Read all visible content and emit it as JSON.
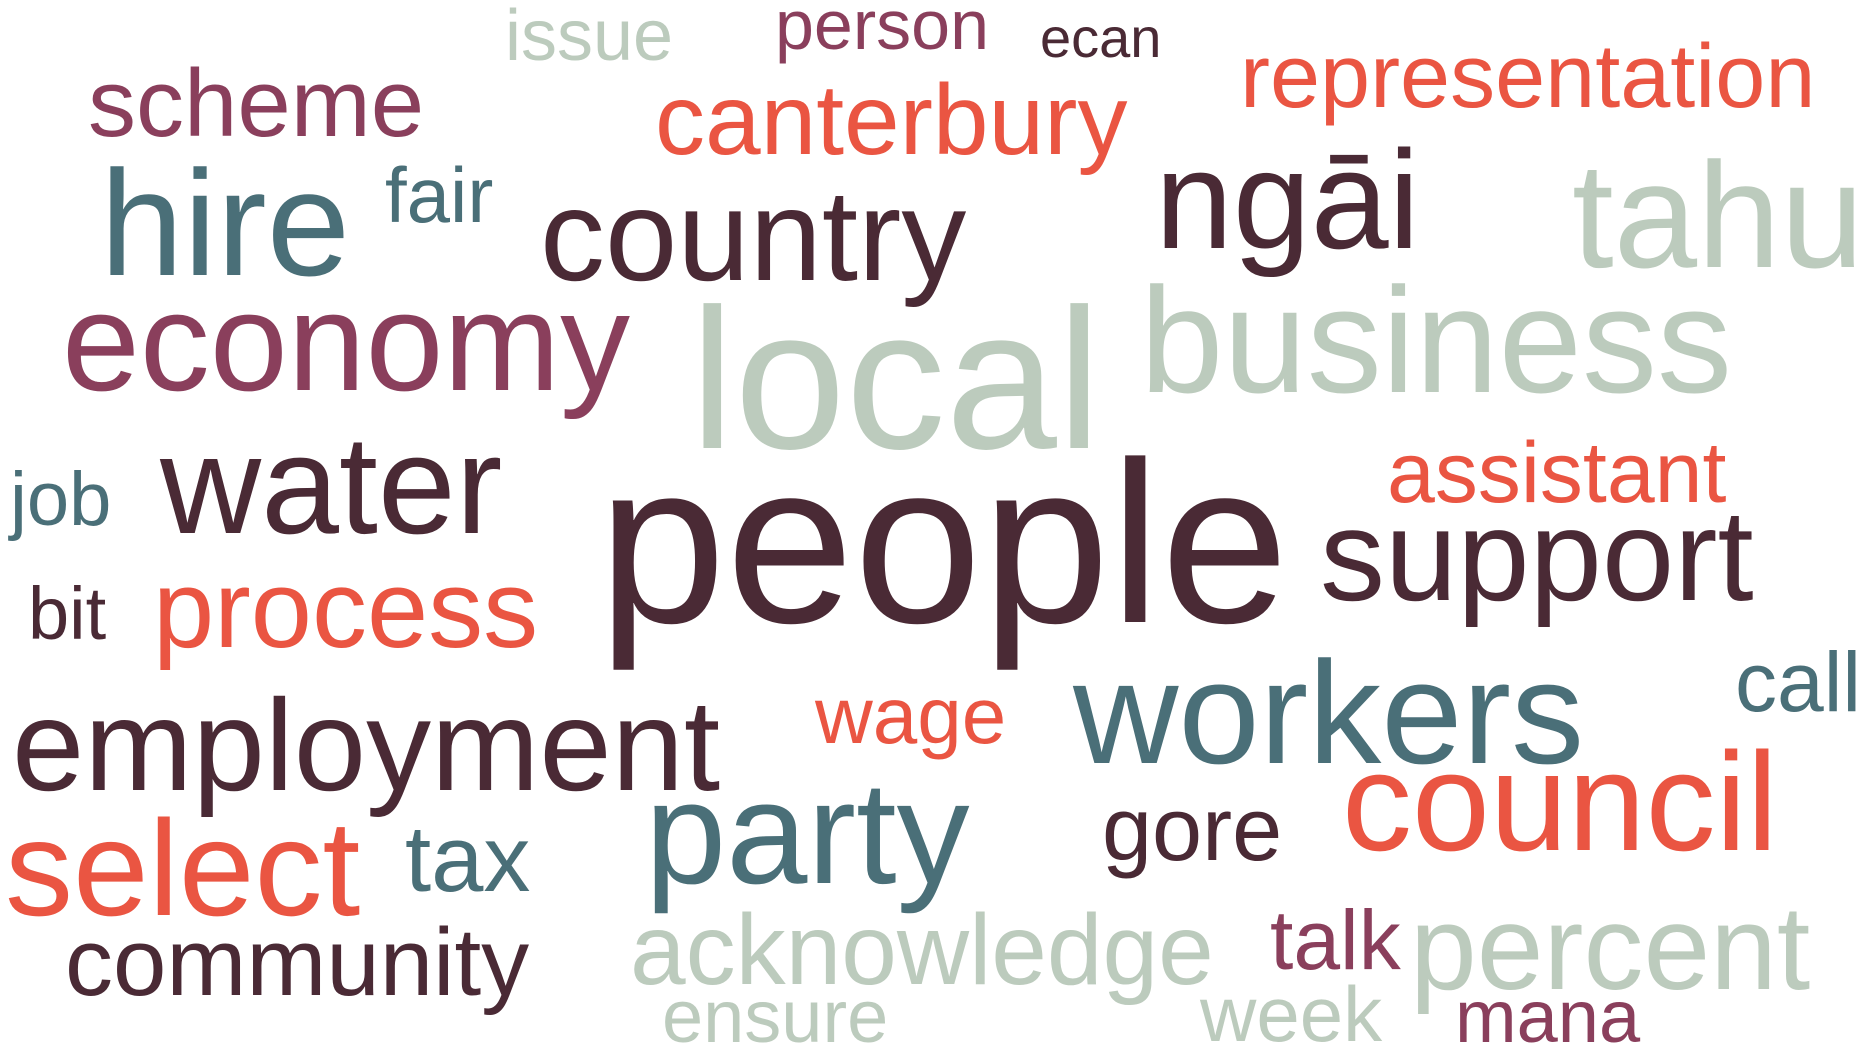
{
  "palette": {
    "dark": "#4a2a35",
    "teal": "#4a6f78",
    "sage": "#bccbbd",
    "plum": "#8a3f5c",
    "coral": "#ea5542"
  },
  "words": {
    "issue": {
      "text": "issue",
      "color": "#bccbbd"
    },
    "person": {
      "text": "person",
      "color": "#8a3f5c"
    },
    "ecan": {
      "text": "ecan",
      "color": "#4a2a35"
    },
    "scheme": {
      "text": "scheme",
      "color": "#8a3f5c"
    },
    "canterbury": {
      "text": "canterbury",
      "color": "#ea5542"
    },
    "representation": {
      "text": "representation",
      "color": "#ea5542"
    },
    "fair": {
      "text": "fair",
      "color": "#4a6f78"
    },
    "hire": {
      "text": "hire",
      "color": "#4a6f78"
    },
    "country": {
      "text": "country",
      "color": "#4a2a35"
    },
    "ngai": {
      "text": "ngāi",
      "color": "#4a2a35"
    },
    "tahu": {
      "text": "tahu",
      "color": "#bccbbd"
    },
    "economy": {
      "text": "economy",
      "color": "#8a3f5c"
    },
    "local": {
      "text": "local",
      "color": "#bccbbd"
    },
    "business": {
      "text": "business",
      "color": "#bccbbd"
    },
    "job": {
      "text": "job",
      "color": "#4a6f78"
    },
    "water": {
      "text": "water",
      "color": "#4a2a35"
    },
    "assistant": {
      "text": "assistant",
      "color": "#ea5542"
    },
    "people": {
      "text": "people",
      "color": "#4a2a35"
    },
    "support": {
      "text": "support",
      "color": "#4a2a35"
    },
    "bit": {
      "text": "bit",
      "color": "#4a2a35"
    },
    "process": {
      "text": "process",
      "color": "#ea5542"
    },
    "call": {
      "text": "call",
      "color": "#4a6f78"
    },
    "workers": {
      "text": "workers",
      "color": "#4a6f78"
    },
    "employment": {
      "text": "employment",
      "color": "#4a2a35"
    },
    "wage": {
      "text": "wage",
      "color": "#ea5542"
    },
    "council": {
      "text": "council",
      "color": "#ea5542"
    },
    "party": {
      "text": "party",
      "color": "#4a6f78"
    },
    "gore": {
      "text": "gore",
      "color": "#4a2a35"
    },
    "select": {
      "text": "select",
      "color": "#ea5542"
    },
    "tax": {
      "text": "tax",
      "color": "#4a6f78"
    },
    "community": {
      "text": "community",
      "color": "#4a2a35"
    },
    "acknowledge": {
      "text": "acknowledge",
      "color": "#bccbbd"
    },
    "talk": {
      "text": "talk",
      "color": "#8a3f5c"
    },
    "percent": {
      "text": "percent",
      "color": "#bccbbd"
    },
    "ensure": {
      "text": "ensure",
      "color": "#bccbbd"
    },
    "week": {
      "text": "week",
      "color": "#bccbbd"
    },
    "mana": {
      "text": "mana",
      "color": "#8a3f5c"
    }
  }
}
